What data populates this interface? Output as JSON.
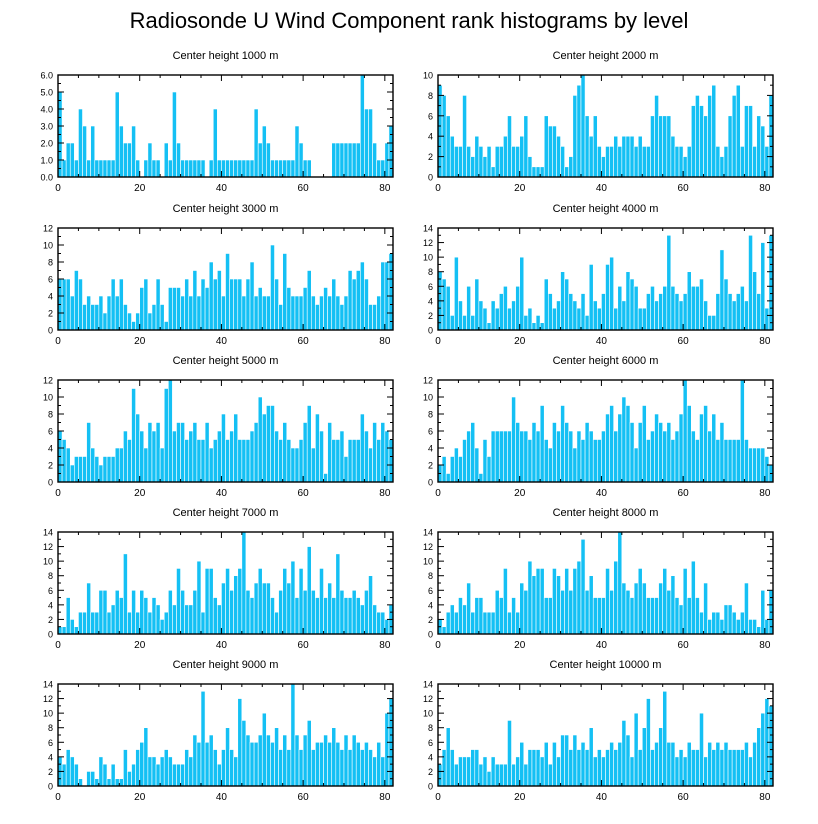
{
  "title": "Radiosonde U Wind Component rank histograms by level",
  "colors": {
    "bar": "#14c0f4",
    "bar_edge": "#ffffff",
    "axis": "#000000"
  },
  "chart_data": [
    {
      "type": "bar",
      "title": "Center height 1000 m",
      "xlim": [
        0,
        82
      ],
      "ylim": [
        0,
        6
      ],
      "xticks": [
        0,
        20,
        40,
        60,
        80
      ],
      "yticks": [
        0.0,
        1.0,
        2.0,
        3.0,
        4.0,
        5.0,
        6.0
      ],
      "ytick_labels": [
        "0.0",
        "1.0",
        "2.0",
        "3.0",
        "4.0",
        "5.0",
        "6.0"
      ],
      "values": [
        5,
        1,
        2,
        2,
        1,
        4,
        3,
        1,
        3,
        1,
        1,
        1,
        1,
        1,
        5,
        3,
        2,
        2,
        3,
        1,
        0,
        1,
        2,
        1,
        1,
        0,
        2,
        1,
        5,
        2,
        1,
        1,
        1,
        1,
        1,
        1,
        0,
        1,
        4,
        1,
        1,
        1,
        1,
        1,
        1,
        1,
        1,
        1,
        4,
        2,
        3,
        2,
        1,
        1,
        1,
        1,
        1,
        1,
        3,
        2,
        1,
        1,
        0,
        0,
        0,
        0,
        0,
        2,
        2,
        2,
        2,
        2,
        2,
        2,
        6,
        4,
        4,
        2,
        1,
        1,
        2,
        3
      ]
    },
    {
      "type": "bar",
      "title": "Center height 2000 m",
      "xlim": [
        0,
        82
      ],
      "ylim": [
        0,
        10
      ],
      "xticks": [
        0,
        20,
        40,
        60,
        80
      ],
      "yticks": [
        0,
        2,
        4,
        6,
        8,
        10
      ],
      "ytick_labels": [
        "0",
        "2",
        "4",
        "6",
        "8",
        "10"
      ],
      "values": [
        9,
        8,
        6,
        4,
        3,
        3,
        8,
        3,
        2,
        4,
        3,
        2,
        3,
        1,
        3,
        3,
        4,
        6,
        3,
        3,
        4,
        6,
        2,
        1,
        1,
        1,
        6,
        5,
        5,
        4,
        3,
        1,
        2,
        8,
        9,
        10,
        6,
        4,
        6,
        3,
        2,
        3,
        3,
        4,
        3,
        4,
        4,
        4,
        3,
        4,
        3,
        3,
        6,
        8,
        6,
        6,
        6,
        4,
        3,
        3,
        2,
        3,
        7,
        8,
        7,
        6,
        8,
        9,
        3,
        2,
        3,
        6,
        8,
        9,
        3,
        7,
        7,
        3,
        6,
        5,
        3,
        8
      ]
    },
    {
      "type": "bar",
      "title": "Center height 3000 m",
      "xlim": [
        0,
        82
      ],
      "ylim": [
        0,
        12
      ],
      "xticks": [
        0,
        20,
        40,
        60,
        80
      ],
      "yticks": [
        0,
        2,
        4,
        6,
        8,
        10,
        12
      ],
      "ytick_labels": [
        "0",
        "2",
        "4",
        "6",
        "8",
        "10",
        "12"
      ],
      "values": [
        6,
        6,
        6,
        4,
        7,
        6,
        3,
        4,
        3,
        3,
        4,
        2,
        4,
        6,
        4,
        6,
        3,
        2,
        1,
        2,
        5,
        6,
        2,
        3,
        6,
        3,
        1,
        5,
        5,
        5,
        4,
        6,
        4,
        7,
        4,
        6,
        5,
        8,
        6,
        7,
        4,
        9,
        6,
        6,
        6,
        4,
        6,
        8,
        4,
        5,
        4,
        4,
        10,
        6,
        3,
        9,
        5,
        4,
        4,
        4,
        5,
        7,
        4,
        3,
        4,
        5,
        4,
        6,
        4,
        3,
        4,
        7,
        6,
        7,
        8,
        6,
        3,
        3,
        4,
        8,
        8,
        9
      ]
    },
    {
      "type": "bar",
      "title": "Center height 4000 m",
      "xlim": [
        0,
        82
      ],
      "ylim": [
        0,
        14
      ],
      "xticks": [
        0,
        20,
        40,
        60,
        80
      ],
      "yticks": [
        0,
        2,
        4,
        6,
        8,
        10,
        12,
        14
      ],
      "ytick_labels": [
        "0",
        "2",
        "4",
        "6",
        "8",
        "10",
        "12",
        "14"
      ],
      "values": [
        8,
        7,
        6,
        2,
        10,
        4,
        2,
        6,
        2,
        7,
        4,
        3,
        1,
        4,
        3,
        5,
        6,
        3,
        4,
        6,
        10,
        2,
        3,
        1,
        2,
        1,
        7,
        5,
        3,
        4,
        8,
        7,
        5,
        4,
        3,
        5,
        2,
        9,
        4,
        3,
        5,
        9,
        10,
        3,
        6,
        4,
        8,
        7,
        6,
        3,
        3,
        5,
        6,
        4,
        5,
        6,
        13,
        6,
        5,
        4,
        5,
        8,
        6,
        6,
        7,
        4,
        2,
        2,
        5,
        11,
        7,
        5,
        4,
        5,
        6,
        4,
        13,
        8,
        5,
        12,
        3,
        13
      ]
    },
    {
      "type": "bar",
      "title": "Center height 5000 m",
      "xlim": [
        0,
        82
      ],
      "ylim": [
        0,
        12
      ],
      "xticks": [
        0,
        20,
        40,
        60,
        80
      ],
      "yticks": [
        0,
        2,
        4,
        6,
        8,
        10,
        12
      ],
      "ytick_labels": [
        "0",
        "2",
        "4",
        "6",
        "8",
        "10",
        "12"
      ],
      "values": [
        6,
        5,
        4,
        2,
        3,
        3,
        3,
        7,
        4,
        3,
        2,
        3,
        3,
        3,
        4,
        4,
        6,
        5,
        11,
        8,
        6,
        4,
        7,
        6,
        7,
        4,
        11,
        12,
        6,
        7,
        7,
        5,
        6,
        7,
        5,
        5,
        7,
        4,
        5,
        6,
        8,
        5,
        6,
        8,
        5,
        5,
        5,
        6,
        7,
        10,
        8,
        9,
        9,
        6,
        5,
        7,
        5,
        4,
        4,
        5,
        7,
        9,
        4,
        8,
        6,
        1,
        7,
        5,
        5,
        6,
        3,
        5,
        5,
        5,
        8,
        6,
        4,
        7,
        5,
        7,
        6,
        5
      ]
    },
    {
      "type": "bar",
      "title": "Center height 6000 m",
      "xlim": [
        0,
        82
      ],
      "ylim": [
        0,
        12
      ],
      "xticks": [
        0,
        20,
        40,
        60,
        80
      ],
      "yticks": [
        0,
        2,
        4,
        6,
        8,
        10,
        12
      ],
      "ytick_labels": [
        "0",
        "2",
        "4",
        "6",
        "8",
        "10",
        "12"
      ],
      "values": [
        2,
        3,
        1,
        3,
        4,
        3,
        5,
        6,
        7,
        4,
        1,
        5,
        3,
        6,
        6,
        6,
        6,
        6,
        10,
        7,
        6,
        6,
        5,
        7,
        6,
        9,
        5,
        4,
        7,
        6,
        9,
        7,
        6,
        4,
        6,
        5,
        7,
        6,
        5,
        5,
        6,
        8,
        9,
        6,
        8,
        10,
        9,
        7,
        4,
        7,
        9,
        5,
        6,
        8,
        7,
        6,
        7,
        5,
        6,
        8,
        12,
        9,
        6,
        5,
        8,
        9,
        6,
        8,
        5,
        7,
        5,
        5,
        5,
        5,
        12,
        5,
        4,
        4,
        4,
        4,
        3,
        2
      ]
    },
    {
      "type": "bar",
      "title": "Center height 7000 m",
      "xlim": [
        0,
        82
      ],
      "ylim": [
        0,
        14
      ],
      "xticks": [
        0,
        20,
        40,
        60,
        80
      ],
      "yticks": [
        0,
        2,
        4,
        6,
        8,
        10,
        12,
        14
      ],
      "ytick_labels": [
        "0",
        "2",
        "4",
        "6",
        "8",
        "10",
        "12",
        "14"
      ],
      "values": [
        1,
        1,
        5,
        2,
        1,
        3,
        3,
        7,
        3,
        3,
        6,
        6,
        3,
        4,
        6,
        5,
        11,
        3,
        6,
        3,
        6,
        5,
        3,
        5,
        4,
        2,
        3,
        6,
        4,
        9,
        6,
        4,
        4,
        6,
        10,
        3,
        9,
        9,
        5,
        4,
        7,
        9,
        6,
        8,
        9,
        14,
        6,
        5,
        7,
        9,
        7,
        7,
        5,
        3,
        6,
        9,
        7,
        10,
        5,
        9,
        6,
        12,
        6,
        5,
        9,
        5,
        7,
        5,
        11,
        6,
        5,
        5,
        6,
        5,
        4,
        6,
        8,
        4,
        3,
        3,
        2,
        4
      ]
    },
    {
      "type": "bar",
      "title": "Center height 8000 m",
      "xlim": [
        0,
        82
      ],
      "ylim": [
        0,
        14
      ],
      "xticks": [
        0,
        20,
        40,
        60,
        80
      ],
      "yticks": [
        0,
        2,
        4,
        6,
        8,
        10,
        12,
        14
      ],
      "ytick_labels": [
        "0",
        "2",
        "4",
        "6",
        "8",
        "10",
        "12",
        "14"
      ],
      "values": [
        2,
        1,
        3,
        4,
        3,
        5,
        4,
        7,
        3,
        5,
        5,
        3,
        3,
        3,
        6,
        5,
        9,
        3,
        5,
        3,
        7,
        6,
        10,
        8,
        9,
        9,
        5,
        5,
        9,
        8,
        6,
        9,
        6,
        9,
        10,
        13,
        6,
        8,
        5,
        5,
        5,
        9,
        6,
        10,
        14,
        7,
        6,
        5,
        7,
        9,
        7,
        5,
        5,
        5,
        7,
        9,
        6,
        8,
        5,
        4,
        9,
        5,
        10,
        5,
        3,
        7,
        2,
        3,
        3,
        2,
        4,
        4,
        3,
        2,
        3,
        7,
        2,
        2,
        1,
        6,
        2,
        6
      ]
    },
    {
      "type": "bar",
      "title": "Center height 9000 m",
      "xlim": [
        0,
        82
      ],
      "ylim": [
        0,
        14
      ],
      "xticks": [
        0,
        20,
        40,
        60,
        80
      ],
      "yticks": [
        0,
        2,
        4,
        6,
        8,
        10,
        12,
        14
      ],
      "ytick_labels": [
        "0",
        "2",
        "4",
        "6",
        "8",
        "10",
        "12",
        "14"
      ],
      "values": [
        4,
        3,
        5,
        4,
        3,
        1,
        0,
        2,
        2,
        1,
        4,
        3,
        1,
        3,
        1,
        1,
        5,
        2,
        3,
        5,
        6,
        8,
        4,
        4,
        3,
        4,
        5,
        4,
        3,
        3,
        3,
        5,
        4,
        7,
        6,
        13,
        6,
        7,
        5,
        3,
        5,
        8,
        5,
        4,
        12,
        9,
        7,
        6,
        6,
        7,
        10,
        7,
        6,
        8,
        5,
        7,
        5,
        14,
        7,
        5,
        7,
        9,
        5,
        6,
        6,
        7,
        6,
        8,
        6,
        5,
        7,
        5,
        7,
        6,
        5,
        6,
        5,
        4,
        6,
        4,
        10,
        12
      ]
    },
    {
      "type": "bar",
      "title": "Center height 10000 m",
      "xlim": [
        0,
        82
      ],
      "ylim": [
        0,
        14
      ],
      "xticks": [
        0,
        20,
        40,
        60,
        80
      ],
      "yticks": [
        0,
        2,
        4,
        6,
        8,
        10,
        12,
        14
      ],
      "ytick_labels": [
        "0",
        "2",
        "4",
        "6",
        "8",
        "10",
        "12",
        "14"
      ],
      "values": [
        3,
        5,
        8,
        5,
        3,
        4,
        4,
        4,
        5,
        5,
        3,
        4,
        2,
        4,
        3,
        3,
        3,
        9,
        3,
        4,
        6,
        3,
        5,
        5,
        5,
        4,
        6,
        3,
        6,
        4,
        7,
        7,
        5,
        7,
        5,
        6,
        5,
        8,
        4,
        5,
        4,
        5,
        6,
        5,
        6,
        9,
        7,
        4,
        10,
        5,
        8,
        12,
        5,
        6,
        8,
        13,
        6,
        6,
        4,
        5,
        4,
        6,
        5,
        5,
        10,
        4,
        6,
        5,
        6,
        5,
        6,
        5,
        5,
        5,
        5,
        6,
        4,
        6,
        8,
        10,
        12,
        11
      ]
    }
  ]
}
